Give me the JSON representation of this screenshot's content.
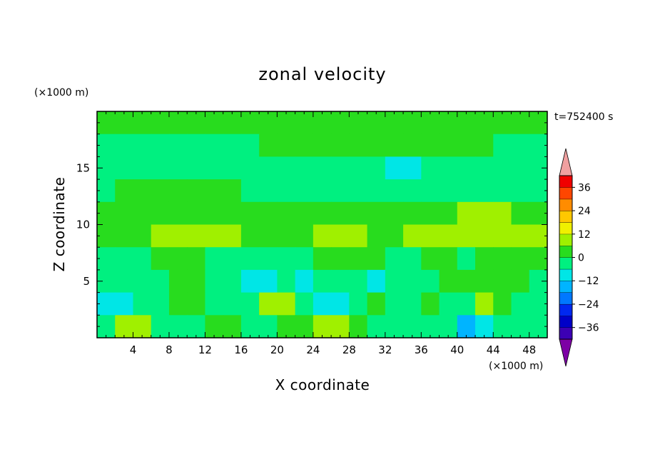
{
  "chart_data": {
    "type": "heatmap",
    "title": "zonal velocity",
    "time_label": "t=752400 s",
    "xlabel": "X coordinate",
    "ylabel": "Z coordinate",
    "x_unit": "(×1000 m)",
    "y_unit": "(×1000 m)",
    "xlim": [
      0,
      50
    ],
    "ylim": [
      0,
      20
    ],
    "x_ticks": [
      "4",
      "8",
      "12",
      "16",
      "20",
      "24",
      "28",
      "32",
      "36",
      "40",
      "44",
      "48"
    ],
    "x_tick_values": [
      4,
      8,
      12,
      16,
      20,
      24,
      28,
      32,
      36,
      40,
      44,
      48
    ],
    "y_ticks": [
      "5",
      "10",
      "15"
    ],
    "y_tick_values": [
      5,
      10,
      15
    ],
    "colorbar": {
      "ticks": [
        "36",
        "24",
        "12",
        "0",
        "−12",
        "−24",
        "−36"
      ],
      "tick_values": [
        36,
        24,
        12,
        0,
        -12,
        -24,
        -36
      ],
      "levels": [
        -42,
        -36,
        -30,
        -24,
        -18,
        -12,
        -6,
        0,
        6,
        12,
        18,
        24,
        30,
        36,
        42
      ],
      "colors": [
        "#7d00a5",
        "#3c00b4",
        "#0000c8",
        "#0028f0",
        "#0078ff",
        "#00b4ff",
        "#00e6e6",
        "#00f080",
        "#28dc1e",
        "#a0f000",
        "#f0f000",
        "#ffc800",
        "#ff8c00",
        "#ff4600",
        "#f00000",
        "#f0a0a0"
      ],
      "extend": "both"
    },
    "grid": false,
    "x_centers": [
      1,
      3,
      5,
      7,
      9,
      11,
      13,
      15,
      17,
      19,
      21,
      23,
      25,
      27,
      29,
      31,
      33,
      35,
      37,
      39,
      41,
      43,
      45,
      47,
      49
    ],
    "z_centers": [
      19,
      17,
      15,
      13,
      11,
      9,
      7,
      5,
      3,
      1
    ],
    "values": [
      [
        2,
        2,
        2,
        4,
        2,
        2,
        2,
        4,
        5,
        5,
        5,
        5,
        5,
        5,
        5,
        5,
        5,
        5,
        5,
        5,
        5,
        5,
        5,
        5,
        5
      ],
      [
        -3,
        -3,
        -3,
        -3,
        -3,
        -3,
        -3,
        -4,
        -2,
        2,
        1,
        1,
        1,
        1,
        1,
        1,
        1,
        1,
        1,
        1,
        1,
        1,
        -2,
        -2,
        -2
      ],
      [
        -2,
        -2,
        -3,
        -3,
        -3,
        -4,
        -5,
        -5,
        -4,
        -3,
        -3,
        -3,
        -3,
        -4,
        -4,
        -3,
        -7,
        -7,
        -6,
        -4,
        -3,
        -3,
        -3,
        -3,
        -3
      ],
      [
        -2,
        2,
        2,
        2,
        2,
        2,
        2,
        1,
        -2,
        -2,
        -2,
        -2,
        -2,
        -3,
        -2,
        -3,
        -3,
        -2,
        -2,
        -2,
        -2,
        -2,
        -2,
        -2,
        -2
      ],
      [
        2,
        2,
        2,
        3,
        2,
        3,
        3,
        3,
        3,
        2,
        2,
        2,
        2,
        2,
        2,
        2,
        2,
        3,
        3,
        3,
        6,
        6,
        6,
        3,
        3
      ],
      [
        3,
        4,
        3,
        7,
        8,
        8,
        8,
        7,
        5,
        3,
        3,
        4,
        7,
        7,
        7,
        4,
        4,
        7,
        8,
        8,
        8,
        8,
        7,
        8,
        8
      ],
      [
        -2,
        -2,
        -3,
        3,
        3,
        3,
        -3,
        -3,
        -3,
        -4,
        -3,
        -3,
        2,
        2,
        2,
        2,
        -3,
        -3,
        2,
        2,
        -3,
        2,
        2,
        2,
        2
      ],
      [
        -3,
        -4,
        -4,
        -4,
        2,
        2,
        -4,
        -4,
        -7,
        -7,
        -4,
        -7,
        -3,
        -3,
        -3,
        -7,
        -5,
        -3,
        -3,
        2,
        2,
        4,
        2,
        2,
        -3
      ],
      [
        -7,
        -7,
        -4,
        -3,
        2,
        2,
        -4,
        -3,
        -3,
        8,
        8,
        -3,
        -7,
        -7,
        -4,
        2,
        -3,
        -4,
        2,
        -3,
        -4,
        8,
        2,
        -3,
        -3
      ],
      [
        -2,
        8,
        8,
        -4,
        -3,
        -4,
        2,
        2,
        -3,
        -4,
        2,
        2,
        8,
        8,
        2,
        -4,
        -3,
        -3,
        -4,
        -6,
        -13,
        -9,
        -3,
        -4,
        -3
      ]
    ]
  }
}
